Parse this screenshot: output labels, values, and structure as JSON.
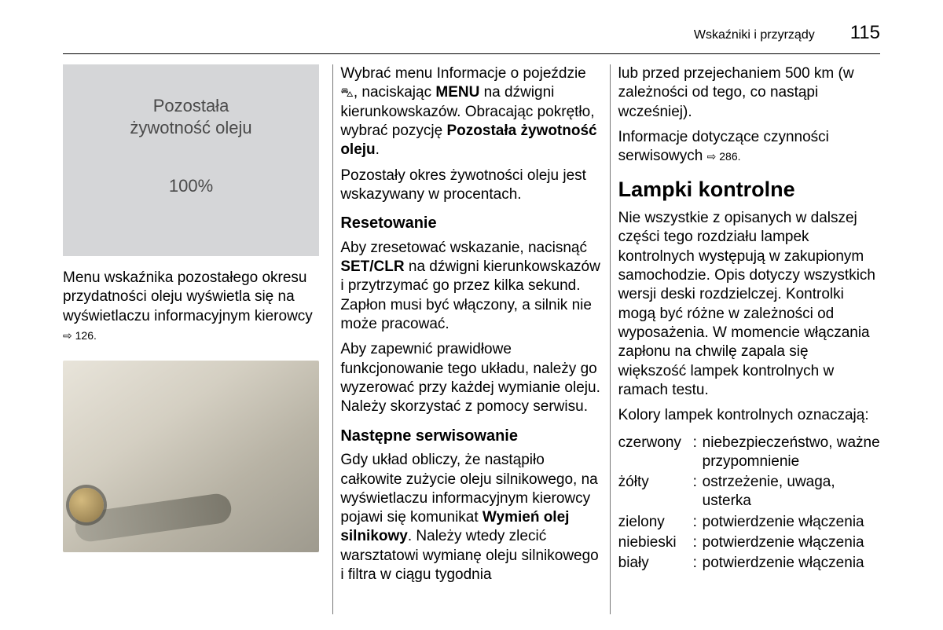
{
  "header": {
    "title": "Wskaźniki i przyrządy",
    "page": "115"
  },
  "col1": {
    "display": {
      "line1": "Pozostała",
      "line2": "żywotność oleju",
      "percent": "100%"
    },
    "p1a": "Menu wskaźnika pozostałego okresu przydatności oleju wyświetla się na wyświetlaczu informacyjnym kierowcy",
    "ref1": "⇨ 126."
  },
  "col2": {
    "p1a": "Wybrać menu Informacje o pojeździe ",
    "car_icon": "⛍",
    "p1b": ", naciskając ",
    "menu_bold": "MENU",
    "p1c": " na dźwigni kierunkowskazów. Obracając pokrętło, wybrać pozycję ",
    "p1d_bold": "Pozostała żywotność oleju",
    "p1e": ".",
    "p2": "Pozostały okres żywotności oleju jest wskazywany w procentach.",
    "h_reset": "Resetowanie",
    "p3a": "Aby zresetować wskazanie, nacisnąć ",
    "setclr_bold": "SET/CLR",
    "p3b": " na dźwigni kierunkowskazów i przytrzymać go przez kilka sekund. Zapłon musi być włączony, a silnik nie może pracować.",
    "p4": "Aby zapewnić prawidłowe funkcjonowanie tego układu, należy go wyzerować przy każdej wymianie oleju. Należy skorzystać z pomocy serwisu.",
    "h_next": "Następne serwisowanie",
    "p5a": "Gdy układ obliczy, że nastąpiło całkowite zużycie oleju silnikowego, na wyświetlaczu informacyjnym kierowcy pojawi się komunikat ",
    "p5b_bold": "Wymień olej silnikowy",
    "p5c": ". Należy wtedy zlecić warsztatowi wymianę oleju silnikowego i filtra w ciągu tygodnia"
  },
  "col3": {
    "p1": "lub przed przejechaniem 500 km (w zależności od tego, co nastąpi wcześniej).",
    "p2a": "Informacje dotyczące czynności serwisowych",
    "ref2": "⇨ 286.",
    "h_lamps": "Lampki kontrolne",
    "p3": "Nie wszystkie z opisanych w dalszej części tego rozdziału lampek kontrolnych występują w zakupionym samochodzie. Opis dotyczy wszystkich wersji deski rozdzielczej. Kontrolki mogą być różne w zależności od wyposażenia. W momencie włączania zapłonu na chwilę zapala się większość lampek kontrolnych w ramach testu.",
    "p4": "Kolory lampek kontrolnych oznaczają:",
    "table": {
      "rows": [
        {
          "label": "czerwony",
          "value": "niebezpieczeństwo, ważne przypomnienie"
        },
        {
          "label": "żółty",
          "value": "ostrzeżenie, uwaga, usterka"
        },
        {
          "label": "zielony",
          "value": "potwierdzenie włączenia"
        },
        {
          "label": "niebieski",
          "value": "potwierdzenie włączenia"
        },
        {
          "label": "biały",
          "value": "potwierdzenie włączenia"
        }
      ]
    }
  }
}
